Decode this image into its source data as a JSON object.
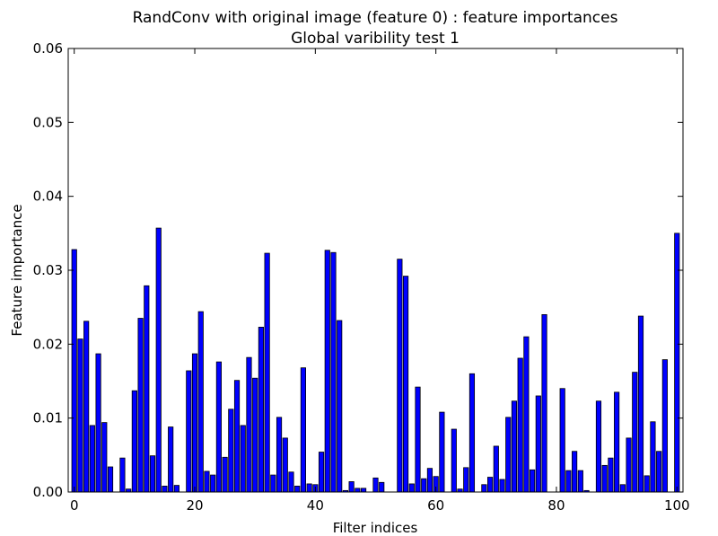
{
  "chart_data": {
    "type": "bar",
    "title": "RandConv with original image (feature 0) : feature importances",
    "subtitle": "Global varibility test 1",
    "xlabel": "Filter indices",
    "ylabel": "Feature importance",
    "xlim": [
      -1,
      101
    ],
    "ylim": [
      0,
      0.06
    ],
    "xticks": [
      0,
      20,
      40,
      60,
      80,
      100
    ],
    "yticks": [
      0.0,
      0.01,
      0.02,
      0.03,
      0.04,
      0.05,
      0.06
    ],
    "xtick_labels": [
      "0",
      "20",
      "40",
      "60",
      "80",
      "100"
    ],
    "ytick_labels": [
      "0.00",
      "0.01",
      "0.02",
      "0.03",
      "0.04",
      "0.05",
      "0.06"
    ],
    "grid": false,
    "bar_color": "#0000ff",
    "edge_color": "#000000",
    "x": [
      0,
      1,
      2,
      3,
      4,
      5,
      6,
      7,
      8,
      9,
      10,
      11,
      12,
      13,
      14,
      15,
      16,
      17,
      18,
      19,
      20,
      21,
      22,
      23,
      24,
      25,
      26,
      27,
      28,
      29,
      30,
      31,
      32,
      33,
      34,
      35,
      36,
      37,
      38,
      39,
      40,
      41,
      42,
      43,
      44,
      45,
      46,
      47,
      48,
      49,
      50,
      51,
      52,
      53,
      54,
      55,
      56,
      57,
      58,
      59,
      60,
      61,
      62,
      63,
      64,
      65,
      66,
      67,
      68,
      69,
      70,
      71,
      72,
      73,
      74,
      75,
      76,
      77,
      78,
      79,
      80,
      81,
      82,
      83,
      84,
      85,
      86,
      87,
      88,
      89,
      90,
      91,
      92,
      93,
      94,
      95,
      96,
      97,
      98,
      99,
      100
    ],
    "values": [
      0.0328,
      0.0207,
      0.0231,
      0.009,
      0.0187,
      0.0094,
      0.0034,
      0.0,
      0.0046,
      0.0004,
      0.0137,
      0.0235,
      0.0279,
      0.0049,
      0.0357,
      0.0008,
      0.0088,
      0.0009,
      0.0,
      0.0164,
      0.0187,
      0.0244,
      0.0028,
      0.0023,
      0.0176,
      0.0047,
      0.0112,
      0.0151,
      0.009,
      0.0182,
      0.0154,
      0.0223,
      0.0323,
      0.0023,
      0.0101,
      0.0073,
      0.0027,
      0.0008,
      0.0168,
      0.0011,
      0.001,
      0.0054,
      0.0327,
      0.0324,
      0.0232,
      0.0002,
      0.0014,
      0.0005,
      0.0005,
      0.0,
      0.0019,
      0.0013,
      0.0,
      0.0,
      0.0315,
      0.0292,
      0.0011,
      0.0142,
      0.0018,
      0.0032,
      0.0021,
      0.0108,
      0.0,
      0.0085,
      0.0004,
      0.0033,
      0.016,
      0.0,
      0.001,
      0.002,
      0.0062,
      0.0017,
      0.0101,
      0.0123,
      0.0181,
      0.021,
      0.003,
      0.013,
      0.024,
      0.0,
      0.0,
      0.014,
      0.0029,
      0.0055,
      0.0029,
      0.0002,
      0.0,
      0.0123,
      0.0036,
      0.0046,
      0.0135,
      0.001,
      0.0073,
      0.0162,
      0.0238,
      0.0022,
      0.0095,
      0.0055,
      0.0179,
      0.0,
      0.035
    ]
  }
}
